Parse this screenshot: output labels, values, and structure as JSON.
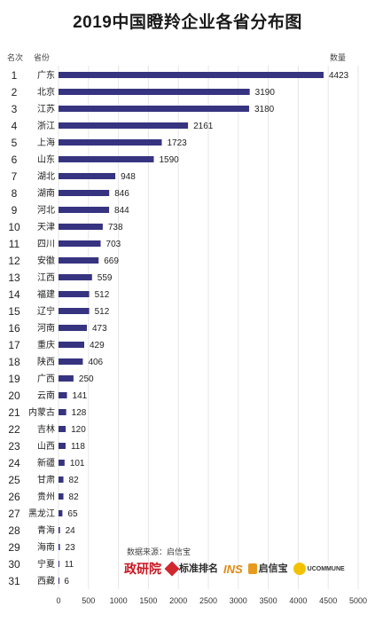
{
  "title": "2019中国瞪羚企业各省分布图",
  "headers": {
    "rank": "名次",
    "province": "省份",
    "count": "数量"
  },
  "source": "数据来源：启信宝",
  "logos": [
    "政研院",
    "标准排名",
    "INS",
    "启信宝",
    "UCOMMUNE"
  ],
  "colors": {
    "bar": "#363480",
    "grid": "#e6e6e6",
    "text": "#222222"
  },
  "chart_data": {
    "type": "bar",
    "orientation": "horizontal",
    "title": "2019中国瞪羚企业各省分布图",
    "xlim": [
      0,
      5000
    ],
    "xticks": [
      0,
      500,
      1000,
      1500,
      2000,
      2500,
      3000,
      3500,
      4000,
      4500,
      5000
    ],
    "grid": "vertical",
    "ranks": [
      1,
      2,
      3,
      4,
      5,
      6,
      7,
      8,
      9,
      10,
      11,
      12,
      13,
      14,
      15,
      16,
      17,
      18,
      19,
      20,
      21,
      22,
      23,
      24,
      25,
      26,
      27,
      28,
      29,
      30,
      31
    ],
    "categories": [
      "广东",
      "北京",
      "江苏",
      "浙江",
      "上海",
      "山东",
      "湖北",
      "湖南",
      "河北",
      "天津",
      "四川",
      "安徽",
      "江西",
      "福建",
      "辽宁",
      "河南",
      "重庆",
      "陕西",
      "广西",
      "云南",
      "内蒙古",
      "吉林",
      "山西",
      "新疆",
      "甘肃",
      "贵州",
      "黑龙江",
      "青海",
      "海南",
      "宁夏",
      "西藏"
    ],
    "values": [
      4423,
      3190,
      3180,
      2161,
      1723,
      1590,
      948,
      846,
      844,
      738,
      703,
      669,
      559,
      512,
      512,
      473,
      429,
      406,
      250,
      141,
      128,
      120,
      118,
      101,
      82,
      82,
      65,
      24,
      23,
      11,
      6
    ]
  }
}
